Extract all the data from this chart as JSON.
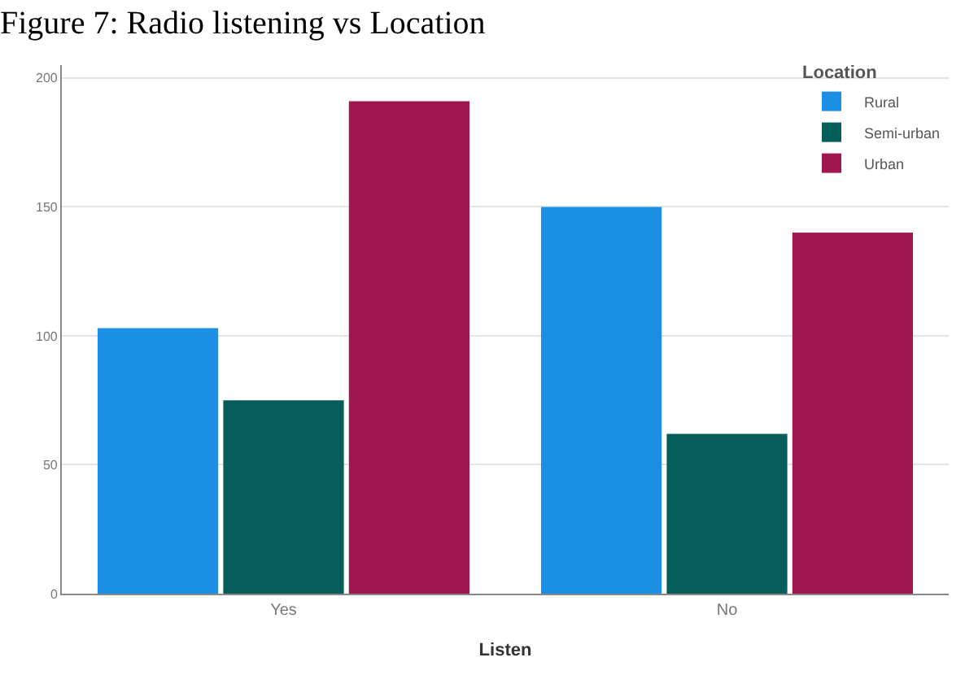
{
  "chart_data": {
    "type": "bar",
    "title": "Figure 7: Radio listening vs Location",
    "xlabel": "Listen",
    "legend_title": "Location",
    "categories": [
      "Yes",
      "No"
    ],
    "series": [
      {
        "name": "Rural",
        "color": "#1a8fe3",
        "values": [
          103,
          150
        ]
      },
      {
        "name": "Semi-urban",
        "color": "#055e5a",
        "values": [
          75,
          62
        ]
      },
      {
        "name": "Urban",
        "color": "#a0174f",
        "values": [
          191,
          140
        ]
      }
    ],
    "ylim": [
      0,
      205
    ],
    "yticks": [
      0,
      50,
      100,
      150,
      200
    ],
    "grid": "y",
    "legend": "top right"
  }
}
